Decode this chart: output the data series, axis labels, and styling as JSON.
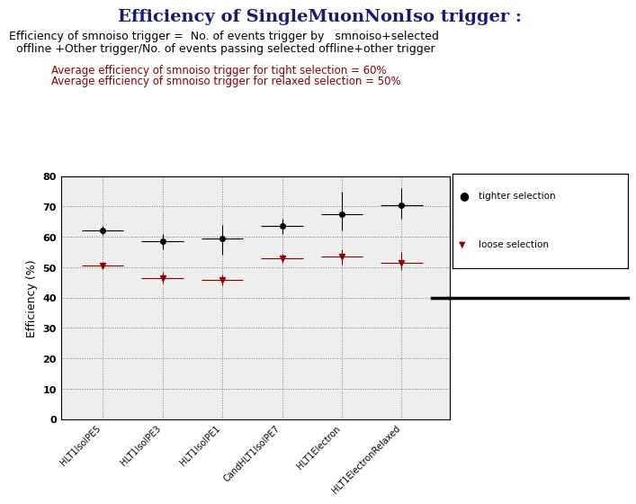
{
  "title": "Efficiency of SingleMuonNonIso trigger :",
  "title_color": "#1a1a6e",
  "subtitle_line1": "Efficiency of smnoiso trigger =  No. of events trigger by   smnoiso+selected",
  "subtitle_line2": "  offline +Other trigger/No. of events passing selected offline+other trigger",
  "avg_text1": "Average efficiency of smnoiso trigger for tight selection = 60%",
  "avg_text2": "Average efficiency of smnoiso trigger for relaxed selection = 50%",
  "xlabel_labels": [
    "HLT1IsoIPE5",
    "HLT1IsoIPE3",
    "HLT1IsoIPE1",
    "CandHLT1IsoIPE7",
    "HLT1Electron",
    "HLT1ElectronRelaxed"
  ],
  "ylabel": "Efficiency (%)",
  "ylim": [
    0,
    80
  ],
  "yticks": [
    0,
    10,
    20,
    30,
    40,
    50,
    60,
    70,
    80
  ],
  "black_x": [
    1,
    2,
    3,
    4,
    5,
    6
  ],
  "black_y": [
    62,
    58.5,
    59.5,
    63.5,
    67.5,
    70.5
  ],
  "black_yerr_lo": [
    1.5,
    2.5,
    5.5,
    2.5,
    5.5,
    4.5
  ],
  "black_yerr_hi": [
    1.5,
    2.5,
    4.5,
    2.5,
    7.5,
    5.5
  ],
  "black_xerr": [
    0.35,
    0.35,
    0.35,
    0.35,
    0.35,
    0.35
  ],
  "red_x": [
    1,
    2,
    3,
    4,
    5,
    6
  ],
  "red_y": [
    50.5,
    46.5,
    45.8,
    53.0,
    53.5,
    51.5
  ],
  "red_yerr_lo": [
    1.0,
    2.0,
    1.8,
    1.5,
    2.5,
    2.5
  ],
  "red_yerr_hi": [
    1.0,
    2.0,
    1.8,
    1.5,
    2.5,
    3.5
  ],
  "red_xerr": [
    0.35,
    0.35,
    0.35,
    0.35,
    0.35,
    0.35
  ],
  "hline_y": 40,
  "legend_tight": "tighter selection",
  "legend_loose": "loose selection",
  "bg_color": "#ffffff",
  "plot_bg_color": "#eeeeee"
}
